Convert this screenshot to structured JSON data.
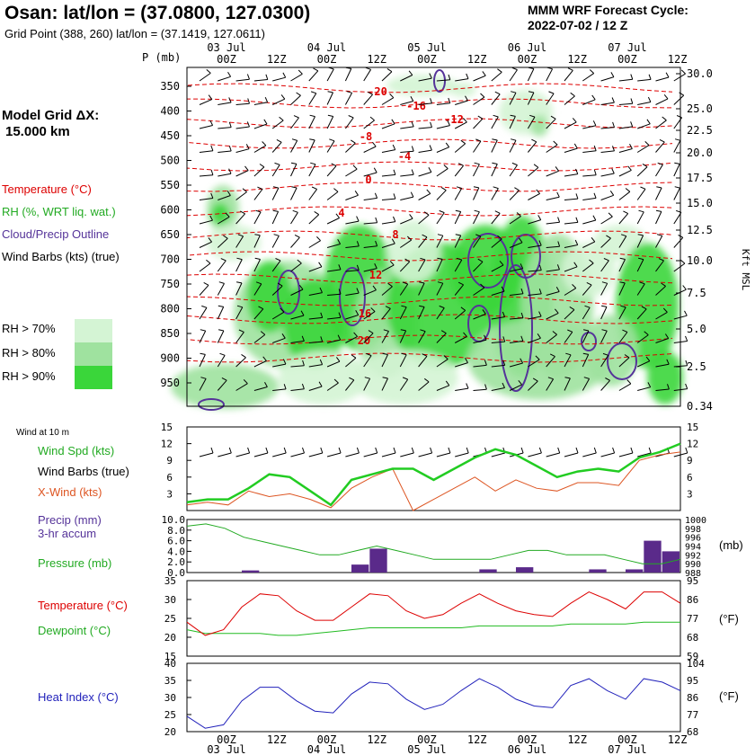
{
  "header": {
    "site_title": "Osan:  lat/lon = (37.0800, 127.0300)",
    "grid_point": "Grid Point (388, 260) lat/lon = (37.1419, 127.0611)",
    "cycle_title": "MMM WRF Forecast Cycle:",
    "cycle_value": "2022-07-02 / 12  Z"
  },
  "model_grid": {
    "line1": "Model Grid ΔX:",
    "line2": "15.000 km"
  },
  "legend_top": {
    "temperature": "Temperature (°C)",
    "rh": "RH (%, WRT liq. wat.)",
    "cloud": "Cloud/Precip Outline",
    "wind": "Wind Barbs (kts) (true)",
    "rh70": "RH > 70%",
    "rh80": "RH > 80%",
    "rh90": "RH > 90%"
  },
  "time_axis": {
    "days": [
      "03 Jul",
      "04 Jul",
      "05 Jul",
      "06 Jul",
      "07 Jul"
    ],
    "hours": [
      "00Z",
      "12Z",
      "00Z",
      "12Z",
      "00Z",
      "12Z",
      "00Z",
      "12Z",
      "00Z",
      "12Z"
    ]
  },
  "colors": {
    "temperature": "#dd0000",
    "rh": "#22aa22",
    "cloud": "#553399",
    "wind": "#000000",
    "xwind": "#dd5522",
    "windspd": "#22cc22",
    "pressure": "#22aa22",
    "precip": "#5a2a8a",
    "dewpoint": "#22bb22",
    "heat": "#2222bb",
    "rh70": "#d4f4d4",
    "rh80": "#9fe29f",
    "rh90": "#3ad63a"
  },
  "chart_data": [
    {
      "type": "heatmap",
      "title": "",
      "y_axis_label": "P (mb)",
      "y_ticks": [
        "350",
        "400",
        "450",
        "500",
        "550",
        "600",
        "650",
        "700",
        "750",
        "800",
        "850",
        "900",
        "950"
      ],
      "right_axis_label": "Kft MSL",
      "right_ticks": [
        "30.0",
        "25.0",
        "22.5",
        "20.0",
        "17.5",
        "15.0",
        "12.5",
        "10.0",
        "7.5",
        "5.0",
        "2.5",
        "0.34"
      ],
      "temperature_contours": [
        "-20",
        "-16",
        "-12",
        "-8",
        "-4",
        "0",
        "4",
        "8",
        "12",
        "16",
        "20"
      ]
    },
    {
      "type": "line",
      "header": "Wind at 10 m",
      "labels": {
        "speed": "Wind Spd (kts)",
        "barbs": "Wind Barbs (true)",
        "xwind": "X-Wind (kts)"
      },
      "ylim": [
        0,
        15
      ],
      "y_ticks": [
        "15",
        "12",
        "9",
        "6",
        "3"
      ],
      "series": [
        {
          "name": "Wind Spd (kts)",
          "values": [
            1.5,
            2,
            2,
            4,
            6.5,
            6,
            3.5,
            1,
            5.5,
            6.5,
            7.5,
            7.5,
            5.5,
            7.5,
            9.5,
            11,
            10,
            8,
            6,
            7,
            7.5,
            7,
            9.5,
            10.5,
            12
          ]
        },
        {
          "name": "X-Wind (kts)",
          "values": [
            1,
            1.5,
            1,
            3.5,
            2.5,
            3,
            2,
            0.5,
            4,
            6,
            7.5,
            0,
            2,
            4,
            6,
            3.5,
            5.5,
            4,
            3.5,
            5,
            5,
            4.5,
            9,
            10,
            10.5
          ]
        }
      ]
    },
    {
      "type": "bar",
      "labels": {
        "precip": "Precip (mm)",
        "precip_sub": "3-hr accum",
        "pressure": "Pressure (mb)"
      },
      "ylim": [
        0,
        10
      ],
      "y_ticks": [
        "10.0",
        "8.0",
        "6.0",
        "4.0",
        "2.0",
        "0.0"
      ],
      "right_ticks": [
        "1000",
        "998",
        "996",
        "994",
        "992",
        "990",
        "988"
      ],
      "right_unit": "(mb)",
      "series": [
        {
          "name": "Precip (mm)",
          "values": [
            0,
            0,
            0,
            0.4,
            0,
            0,
            0,
            0,
            0,
            1.5,
            4.5,
            0,
            0,
            0,
            0,
            0,
            0.6,
            0,
            1.0,
            0,
            0,
            0,
            0.6,
            0,
            0.6,
            6.0,
            4.0
          ]
        },
        {
          "name": "Pressure (mb)",
          "values": [
            998.5,
            999,
            998,
            996,
            995,
            994,
            993,
            992,
            992,
            993,
            994,
            993,
            992,
            991,
            991,
            991,
            991,
            992,
            993,
            993,
            992,
            992,
            992,
            991,
            990,
            990,
            991
          ]
        }
      ]
    },
    {
      "type": "line",
      "labels": {
        "temperature": "Temperature (°C)",
        "dewpoint": "Dewpoint (°C)"
      },
      "ylim": [
        15,
        35
      ],
      "y_ticks": [
        "35",
        "30",
        "25",
        "20",
        "15"
      ],
      "right_ticks": [
        "95",
        "86",
        "77",
        "68",
        "59"
      ],
      "right_unit": "(°F)",
      "series": [
        {
          "name": "Temperature (°C)",
          "values": [
            24,
            20.5,
            22,
            28,
            31.5,
            31,
            27,
            24.5,
            24.5,
            28,
            31.5,
            31,
            27,
            25,
            26,
            29,
            31.5,
            29,
            27,
            26,
            25.5,
            29,
            32,
            30,
            27.5,
            32,
            32,
            29
          ]
        },
        {
          "name": "Dewpoint (°C)",
          "values": [
            22,
            21,
            21,
            21,
            21,
            20.5,
            20.5,
            21,
            21.5,
            22,
            22.5,
            22.5,
            22.5,
            22.5,
            22.5,
            22.5,
            23,
            23,
            23,
            23,
            23,
            23.5,
            23.5,
            23.5,
            23.5,
            24,
            24,
            24
          ]
        }
      ]
    },
    {
      "type": "line",
      "labels": {
        "heat": "Heat Index (°C)"
      },
      "ylim": [
        20,
        40
      ],
      "y_ticks": [
        "40",
        "35",
        "30",
        "25",
        "20"
      ],
      "right_ticks": [
        "104",
        "95",
        "86",
        "77",
        "68"
      ],
      "right_unit": "(°F)",
      "series": [
        {
          "name": "Heat Index (°C)",
          "values": [
            24.5,
            21,
            22,
            29,
            33,
            33,
            29,
            26,
            25.5,
            31,
            34.5,
            34,
            29.5,
            26.5,
            28,
            32,
            35.5,
            33,
            29.5,
            27.5,
            27,
            33.5,
            35.5,
            32,
            29.5,
            35.5,
            34.5,
            32
          ]
        }
      ]
    }
  ]
}
